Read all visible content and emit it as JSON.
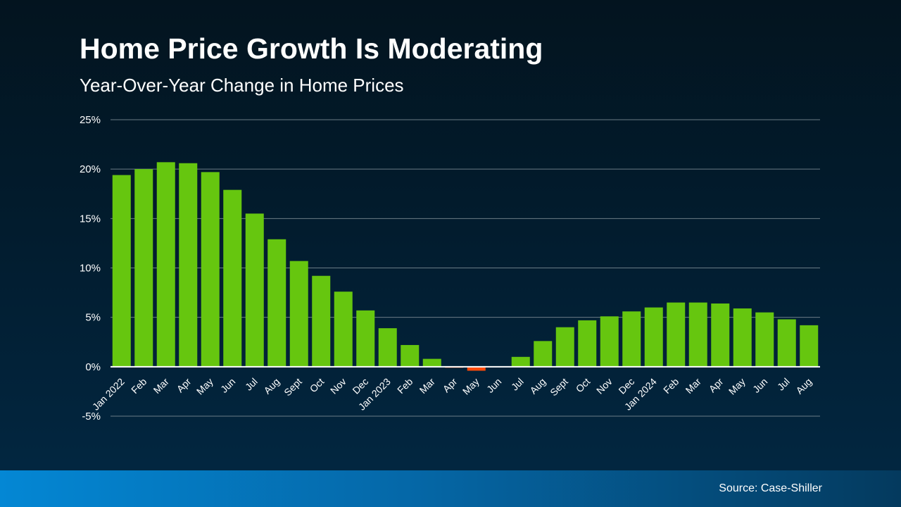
{
  "header": {
    "title": "Home Price Growth Is Moderating",
    "subtitle": "Year-Over-Year Change in Home Prices"
  },
  "footer": {
    "source": "Source: Case-Shiller"
  },
  "colors": {
    "positive": "#66c60f",
    "negative": "#ff4a0a",
    "grid": "#6b7b86",
    "zero_line": "#ffffff"
  },
  "chart_data": {
    "type": "bar",
    "title": "Home Price Growth Is Moderating",
    "subtitle": "Year-Over-Year Change in Home Prices",
    "xlabel": "",
    "ylabel": "",
    "ylim": [
      -5,
      25
    ],
    "yticks": [
      -5,
      0,
      5,
      10,
      15,
      20,
      25
    ],
    "ytick_labels": [
      "-5%",
      "0%",
      "5%",
      "10%",
      "15%",
      "20%",
      "25%"
    ],
    "grid": true,
    "categories": [
      "Jan 2022",
      "Feb",
      "Mar",
      "Apr",
      "May",
      "Jun",
      "Jul",
      "Aug",
      "Sept",
      "Oct",
      "Nov",
      "Dec",
      "Jan 2023",
      "Feb",
      "Mar",
      "Apr",
      "May",
      "Jun",
      "Jul",
      "Aug",
      "Sept",
      "Oct",
      "Nov",
      "Dec",
      "Jan 2024",
      "Feb",
      "Mar",
      "Apr",
      "May",
      "Jun",
      "Jul",
      "Aug"
    ],
    "values": [
      19.4,
      20.0,
      20.7,
      20.6,
      19.7,
      17.9,
      15.5,
      12.9,
      10.7,
      9.2,
      7.6,
      5.7,
      3.9,
      2.2,
      0.8,
      -0.1,
      -0.4,
      0.0,
      1.0,
      2.6,
      4.0,
      4.7,
      5.1,
      5.6,
      6.0,
      6.5,
      6.5,
      6.4,
      5.9,
      5.5,
      4.8,
      4.2
    ]
  }
}
